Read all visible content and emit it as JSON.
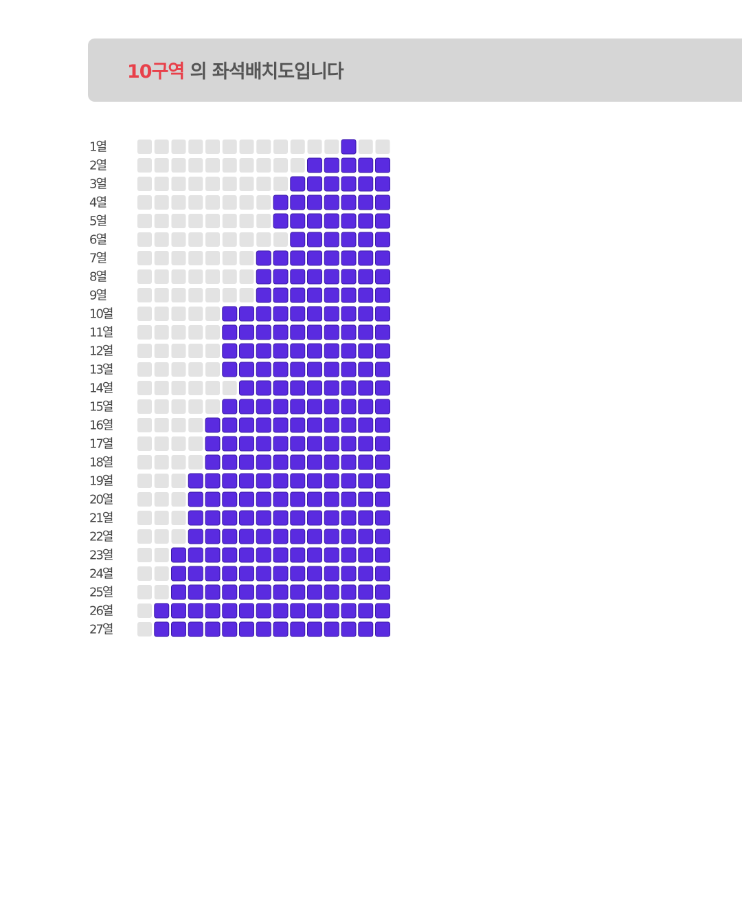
{
  "header": {
    "zone": "10구역",
    "title": "의 좌석배치도입니다"
  },
  "seat_colors": {
    "taken": "#5a2be0",
    "empty": "#e3e3e3"
  },
  "rows": [
    {
      "label": "1열",
      "seats": [
        0,
        0,
        0,
        0,
        0,
        0,
        0,
        0,
        0,
        0,
        0,
        0,
        1,
        0,
        0
      ]
    },
    {
      "label": "2열",
      "seats": [
        0,
        0,
        0,
        0,
        0,
        0,
        0,
        0,
        0,
        0,
        1,
        1,
        1,
        1,
        1
      ]
    },
    {
      "label": "3열",
      "seats": [
        0,
        0,
        0,
        0,
        0,
        0,
        0,
        0,
        0,
        1,
        1,
        1,
        1,
        1,
        1
      ]
    },
    {
      "label": "4열",
      "seats": [
        0,
        0,
        0,
        0,
        0,
        0,
        0,
        0,
        1,
        1,
        1,
        1,
        1,
        1,
        1
      ]
    },
    {
      "label": "5열",
      "seats": [
        0,
        0,
        0,
        0,
        0,
        0,
        0,
        0,
        1,
        1,
        1,
        1,
        1,
        1,
        1
      ]
    },
    {
      "label": "6열",
      "seats": [
        0,
        0,
        0,
        0,
        0,
        0,
        0,
        0,
        0,
        1,
        1,
        1,
        1,
        1,
        1
      ]
    },
    {
      "label": "7열",
      "seats": [
        0,
        0,
        0,
        0,
        0,
        0,
        0,
        1,
        1,
        1,
        1,
        1,
        1,
        1,
        1
      ]
    },
    {
      "label": "8열",
      "seats": [
        0,
        0,
        0,
        0,
        0,
        0,
        0,
        1,
        1,
        1,
        1,
        1,
        1,
        1,
        1
      ]
    },
    {
      "label": "9열",
      "seats": [
        0,
        0,
        0,
        0,
        0,
        0,
        0,
        1,
        1,
        1,
        1,
        1,
        1,
        1,
        1
      ]
    },
    {
      "label": "10열",
      "seats": [
        0,
        0,
        0,
        0,
        0,
        1,
        1,
        1,
        1,
        1,
        1,
        1,
        1,
        1,
        1
      ]
    },
    {
      "label": "11열",
      "seats": [
        0,
        0,
        0,
        0,
        0,
        1,
        1,
        1,
        1,
        1,
        1,
        1,
        1,
        1,
        1
      ]
    },
    {
      "label": "12열",
      "seats": [
        0,
        0,
        0,
        0,
        0,
        1,
        1,
        1,
        1,
        1,
        1,
        1,
        1,
        1,
        1
      ]
    },
    {
      "label": "13열",
      "seats": [
        0,
        0,
        0,
        0,
        0,
        1,
        1,
        1,
        1,
        1,
        1,
        1,
        1,
        1,
        1
      ]
    },
    {
      "label": "14열",
      "seats": [
        0,
        0,
        0,
        0,
        0,
        0,
        1,
        1,
        1,
        1,
        1,
        1,
        1,
        1,
        1
      ]
    },
    {
      "label": "15열",
      "seats": [
        0,
        0,
        0,
        0,
        0,
        1,
        1,
        1,
        1,
        1,
        1,
        1,
        1,
        1,
        1
      ]
    },
    {
      "label": "16열",
      "seats": [
        0,
        0,
        0,
        0,
        1,
        1,
        1,
        1,
        1,
        1,
        1,
        1,
        1,
        1,
        1
      ]
    },
    {
      "label": "17열",
      "seats": [
        0,
        0,
        0,
        0,
        1,
        1,
        1,
        1,
        1,
        1,
        1,
        1,
        1,
        1,
        1
      ]
    },
    {
      "label": "18열",
      "seats": [
        0,
        0,
        0,
        0,
        1,
        1,
        1,
        1,
        1,
        1,
        1,
        1,
        1,
        1,
        1
      ]
    },
    {
      "label": "19열",
      "seats": [
        0,
        0,
        0,
        1,
        1,
        1,
        1,
        1,
        1,
        1,
        1,
        1,
        1,
        1,
        1
      ]
    },
    {
      "label": "20열",
      "seats": [
        0,
        0,
        0,
        1,
        1,
        1,
        1,
        1,
        1,
        1,
        1,
        1,
        1,
        1,
        1
      ]
    },
    {
      "label": "21열",
      "seats": [
        0,
        0,
        0,
        1,
        1,
        1,
        1,
        1,
        1,
        1,
        1,
        1,
        1,
        1,
        1
      ]
    },
    {
      "label": "22열",
      "seats": [
        0,
        0,
        0,
        1,
        1,
        1,
        1,
        1,
        1,
        1,
        1,
        1,
        1,
        1,
        1
      ]
    },
    {
      "label": "23열",
      "seats": [
        0,
        0,
        1,
        1,
        1,
        1,
        1,
        1,
        1,
        1,
        1,
        1,
        1,
        1,
        1
      ]
    },
    {
      "label": "24열",
      "seats": [
        0,
        0,
        1,
        1,
        1,
        1,
        1,
        1,
        1,
        1,
        1,
        1,
        1,
        1,
        1
      ]
    },
    {
      "label": "25열",
      "seats": [
        0,
        0,
        1,
        1,
        1,
        1,
        1,
        1,
        1,
        1,
        1,
        1,
        1,
        1,
        1
      ]
    },
    {
      "label": "26열",
      "seats": [
        0,
        1,
        1,
        1,
        1,
        1,
        1,
        1,
        1,
        1,
        1,
        1,
        1,
        1,
        1
      ]
    },
    {
      "label": "27열",
      "seats": [
        0,
        1,
        1,
        1,
        1,
        1,
        1,
        1,
        1,
        1,
        1,
        1,
        1,
        1,
        1
      ]
    }
  ]
}
